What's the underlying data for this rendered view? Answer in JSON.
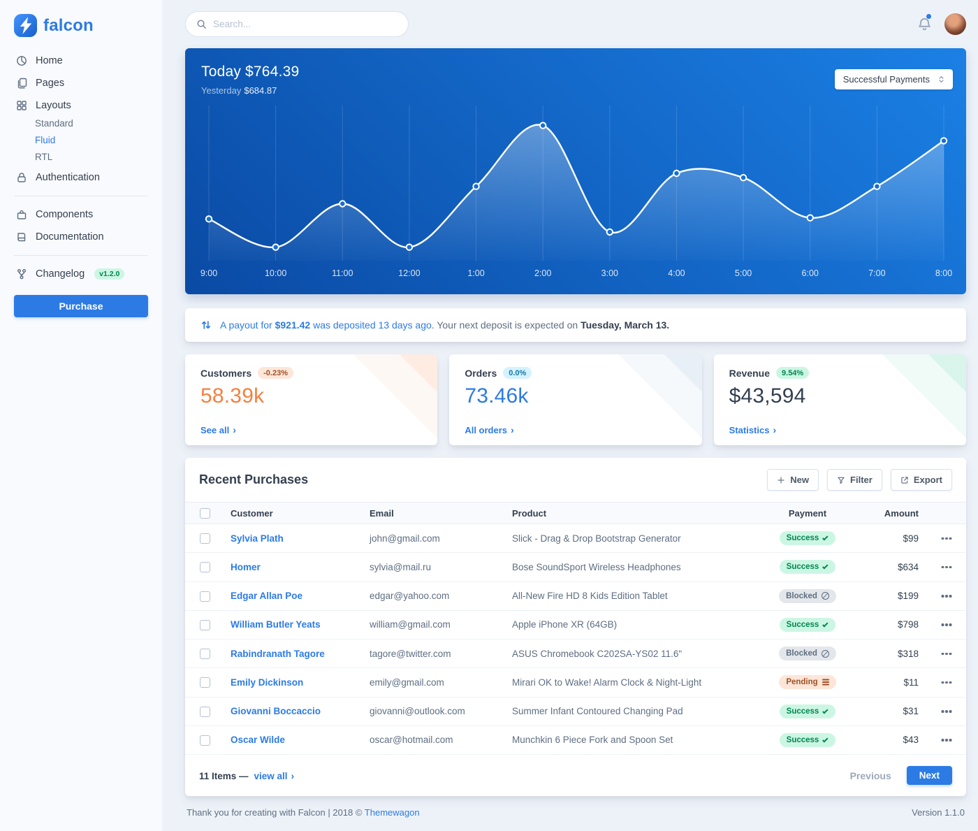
{
  "colors": {
    "primary": "#2c7be5",
    "orange": "#f5803e",
    "success_soft_bg": "#ccf6e4",
    "success_soft_text": "#00864e",
    "warning_soft_bg": "#fde6d8",
    "warning_soft_text": "#9d5228",
    "secondary_soft_bg": "#e3e6ea",
    "chart_gradient_start": "#0a4aa4",
    "chart_gradient_end": "#1b80e5"
  },
  "brand": {
    "name": "falcon"
  },
  "topbar": {
    "search_placeholder": "Search..."
  },
  "sidebar": {
    "items": [
      {
        "label": "Home"
      },
      {
        "label": "Pages"
      },
      {
        "label": "Layouts"
      },
      {
        "label": "Authentication"
      },
      {
        "label": "Components"
      },
      {
        "label": "Documentation"
      },
      {
        "label": "Changelog"
      }
    ],
    "layouts_children": [
      {
        "label": "Standard",
        "active": false
      },
      {
        "label": "Fluid",
        "active": true
      },
      {
        "label": "RTL",
        "active": false
      }
    ],
    "changelog_badge": "v1.2.0",
    "purchase": "Purchase"
  },
  "hero": {
    "today_label": "Today",
    "today_value": "$764.39",
    "yesterday_label": "Yesterday",
    "yesterday_value": "$684.87",
    "select_value": "Successful Payments"
  },
  "chart_data": {
    "type": "line",
    "title": "Successful Payments",
    "categories": [
      "9:00",
      "10:00",
      "11:00",
      "12:00",
      "1:00",
      "2:00",
      "3:00",
      "4:00",
      "5:00",
      "6:00",
      "7:00",
      "8:00"
    ],
    "series": [
      {
        "name": "Successful Payments",
        "values": [
          32,
          6,
          46,
          6,
          62,
          118,
          20,
          74,
          70,
          33,
          62,
          104
        ]
      }
    ],
    "ylim": [
      0,
      130
    ],
    "grid": "vertical",
    "legend": "none"
  },
  "payout": {
    "link_pre": "A payout for ",
    "amount": "$921.42",
    "link_post": " was deposited 13 days ago",
    "rest": ". Your next deposit is expected on ",
    "date": "Tuesday, March 13."
  },
  "stats": [
    {
      "title": "Customers",
      "badge": "-0.23%",
      "value": "58.39k",
      "link": "See all"
    },
    {
      "title": "Orders",
      "badge": "0.0%",
      "value": "73.46k",
      "link": "All orders"
    },
    {
      "title": "Revenue",
      "badge": "9.54%",
      "value": "$43,594",
      "link": "Statistics"
    }
  ],
  "purchases": {
    "title": "Recent Purchases",
    "actions": {
      "new": "New",
      "filter": "Filter",
      "export": "Export"
    },
    "columns": [
      "Customer",
      "Email",
      "Product",
      "Payment",
      "Amount"
    ],
    "rows": [
      {
        "customer": "Sylvia Plath",
        "email": "john@gmail.com",
        "product": "Slick - Drag & Drop Bootstrap Generator",
        "payment": "Success",
        "payment_style": "success",
        "amount": "$99"
      },
      {
        "customer": "Homer",
        "email": "sylvia@mail.ru",
        "product": "Bose SoundSport Wireless Headphones",
        "payment": "Success",
        "payment_style": "success",
        "amount": "$634"
      },
      {
        "customer": "Edgar Allan Poe",
        "email": "edgar@yahoo.com",
        "product": "All-New Fire HD 8 Kids Edition Tablet",
        "payment": "Blocked",
        "payment_style": "secondary",
        "amount": "$199"
      },
      {
        "customer": "William Butler Yeats",
        "email": "william@gmail.com",
        "product": "Apple iPhone XR (64GB)",
        "payment": "Success",
        "payment_style": "success",
        "amount": "$798"
      },
      {
        "customer": "Rabindranath Tagore",
        "email": "tagore@twitter.com",
        "product": "ASUS Chromebook C202SA-YS02 11.6\"",
        "payment": "Blocked",
        "payment_style": "secondary",
        "amount": "$318"
      },
      {
        "customer": "Emily Dickinson",
        "email": "emily@gmail.com",
        "product": "Mirari OK to Wake! Alarm Clock & Night-Light",
        "payment": "Pending",
        "payment_style": "warning",
        "amount": "$11"
      },
      {
        "customer": "Giovanni Boccaccio",
        "email": "giovanni@outlook.com",
        "product": "Summer Infant Contoured Changing Pad",
        "payment": "Success",
        "payment_style": "success",
        "amount": "$31"
      },
      {
        "customer": "Oscar Wilde",
        "email": "oscar@hotmail.com",
        "product": "Munchkin 6 Piece Fork and Spoon Set",
        "payment": "Success",
        "payment_style": "success",
        "amount": "$43"
      }
    ],
    "footer": {
      "items_text": "11 Items —",
      "view_all": "view all",
      "previous": "Previous",
      "next": "Next"
    }
  },
  "page_footer": {
    "thanks_pre": "Thank you for creating with Falcon | 2018 © ",
    "brand_link": "Themewagon",
    "version": "Version 1.1.0"
  }
}
